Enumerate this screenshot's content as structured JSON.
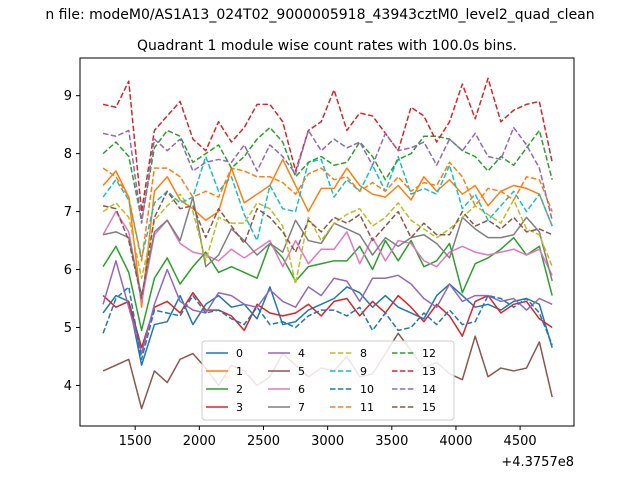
{
  "figure": {
    "suptitle": "n file: modeM0/AS1A13_024T02_9000005918_43943cztM0_level2_quad_clean",
    "background": "#ffffff"
  },
  "chart_data": {
    "type": "line",
    "title": "Quadrant 1 module wise count rates with 100.0s bins.",
    "xlabel": "",
    "ylabel": "",
    "x_offset_label": "+4.3757e8",
    "x_offset": 437570000,
    "xlim": [
      1070,
      4920
    ],
    "ylim": [
      3.3,
      9.65
    ],
    "x_ticks": [
      1500,
      2000,
      2500,
      3000,
      3500,
      4000,
      4500
    ],
    "x_tick_labels": [
      "1500",
      "2000",
      "2500",
      "3000",
      "3500",
      "4000",
      "4500"
    ],
    "y_ticks": [
      4,
      5,
      6,
      7,
      8,
      9
    ],
    "y_tick_labels": [
      "4",
      "5",
      "6",
      "7",
      "8",
      "9"
    ],
    "grid": false,
    "legend": {
      "placement": "lower-center",
      "columns": 4
    },
    "x": [
      1250,
      1350,
      1450,
      1550,
      1650,
      1750,
      1850,
      1950,
      2050,
      2150,
      2250,
      2350,
      2450,
      2550,
      2650,
      2750,
      2850,
      2950,
      3050,
      3150,
      3250,
      3350,
      3450,
      3550,
      3650,
      3750,
      3850,
      3950,
      4050,
      4150,
      4250,
      4350,
      4450,
      4550,
      4650,
      4750
    ],
    "series": [
      {
        "name": "0",
        "color": "#1f77b4",
        "dash": "solid",
        "values": [
          5.25,
          5.55,
          5.45,
          4.35,
          5.05,
          5.1,
          5.55,
          5.05,
          5.4,
          5.55,
          5.35,
          5.4,
          5.15,
          5.7,
          5.05,
          5.1,
          5.3,
          5.4,
          5.5,
          5.7,
          5.6,
          5.35,
          5.55,
          5.35,
          5.25,
          5.15,
          5.55,
          5.75,
          5.55,
          5.35,
          5.4,
          5.3,
          5.45,
          5.5,
          5.4,
          4.65
        ]
      },
      {
        "name": "1",
        "color": "#ff7f0e",
        "dash": "solid",
        "values": [
          7.45,
          7.7,
          7.25,
          5.35,
          7.35,
          7.6,
          7.2,
          7.05,
          6.85,
          7.0,
          7.75,
          7.15,
          7.3,
          7.45,
          7.9,
          7.45,
          7.0,
          7.4,
          7.4,
          7.75,
          7.45,
          7.3,
          7.25,
          7.45,
          7.2,
          7.6,
          7.35,
          7.55,
          7.3,
          7.45,
          7.1,
          7.35,
          7.45,
          7.4,
          7.3,
          6.75
        ]
      },
      {
        "name": "2",
        "color": "#2ca02c",
        "dash": "solid",
        "values": [
          6.05,
          6.4,
          5.95,
          4.95,
          5.85,
          6.2,
          5.75,
          6.05,
          6.3,
          5.95,
          6.05,
          5.95,
          5.85,
          6.45,
          6.2,
          5.8,
          6.05,
          6.1,
          6.15,
          6.15,
          6.4,
          6.0,
          6.5,
          6.15,
          6.5,
          6.05,
          6.15,
          6.45,
          5.6,
          6.1,
          6.2,
          6.35,
          6.55,
          6.25,
          6.4,
          5.55
        ]
      },
      {
        "name": "3",
        "color": "#d62728",
        "dash": "solid",
        "values": [
          5.55,
          5.35,
          5.45,
          4.65,
          5.35,
          5.45,
          5.25,
          5.6,
          5.3,
          5.3,
          5.2,
          4.95,
          5.4,
          5.25,
          5.2,
          5.25,
          5.4,
          5.2,
          5.45,
          5.5,
          5.2,
          5.45,
          5.25,
          5.55,
          5.35,
          5.1,
          5.4,
          5.2,
          4.85,
          5.45,
          5.55,
          5.25,
          5.4,
          5.45,
          5.15,
          5.0
        ]
      },
      {
        "name": "4",
        "color": "#9467bd",
        "dash": "solid",
        "values": [
          5.4,
          6.15,
          5.35,
          4.55,
          5.4,
          6.0,
          5.45,
          5.3,
          5.25,
          5.6,
          5.55,
          5.4,
          5.35,
          5.65,
          5.45,
          5.35,
          5.7,
          5.55,
          5.85,
          5.8,
          5.45,
          5.85,
          5.85,
          5.9,
          5.75,
          5.5,
          5.35,
          5.75,
          5.45,
          5.55,
          5.55,
          5.45,
          5.5,
          5.3,
          5.5,
          5.4
        ]
      },
      {
        "name": "5",
        "color": "#8c564b",
        "dash": "solid",
        "values": [
          4.25,
          4.35,
          4.45,
          3.6,
          4.25,
          4.05,
          4.45,
          4.55,
          4.3,
          4.0,
          4.35,
          4.25,
          4.0,
          4.15,
          4.55,
          4.35,
          4.15,
          4.3,
          4.25,
          4.5,
          4.15,
          4.2,
          4.55,
          4.9,
          4.6,
          4.3,
          4.4,
          4.2,
          4.1,
          4.85,
          4.15,
          4.3,
          4.25,
          4.3,
          4.75,
          3.8
        ]
      },
      {
        "name": "6",
        "color": "#e377c2",
        "dash": "solid",
        "values": [
          6.6,
          7.0,
          6.65,
          5.45,
          6.6,
          6.85,
          6.45,
          6.3,
          6.25,
          6.15,
          6.35,
          6.2,
          6.35,
          6.5,
          6.05,
          6.5,
          6.1,
          6.35,
          6.35,
          6.65,
          6.1,
          6.55,
          6.15,
          6.5,
          6.45,
          6.15,
          6.05,
          6.3,
          6.4,
          6.3,
          6.25,
          6.3,
          6.35,
          6.25,
          6.35,
          5.9
        ]
      },
      {
        "name": "7",
        "color": "#7f7f7f",
        "dash": "solid",
        "values": [
          6.6,
          6.65,
          6.55,
          5.55,
          6.65,
          6.85,
          6.5,
          7.25,
          6.05,
          6.25,
          6.7,
          6.5,
          6.25,
          6.45,
          6.3,
          6.85,
          6.5,
          6.45,
          6.8,
          6.7,
          6.6,
          6.25,
          6.55,
          6.4,
          6.55,
          6.6,
          6.45,
          6.2,
          6.9,
          6.7,
          6.55,
          6.55,
          6.6,
          6.9,
          6.65,
          5.8
        ]
      },
      {
        "name": "8",
        "color": "#bcbd22",
        "dash": "dashed",
        "values": [
          7.0,
          7.15,
          6.9,
          5.85,
          6.85,
          7.1,
          7.3,
          7.0,
          6.15,
          6.9,
          6.8,
          6.8,
          7.15,
          7.05,
          6.75,
          5.75,
          6.9,
          6.5,
          6.8,
          6.95,
          7.05,
          6.75,
          6.9,
          7.15,
          6.85,
          6.7,
          6.55,
          6.7,
          6.9,
          7.1,
          6.95,
          6.8,
          7.2,
          6.7,
          6.6,
          6.05
        ]
      },
      {
        "name": "9",
        "color": "#17becf",
        "dash": "dashed",
        "values": [
          7.25,
          7.55,
          7.2,
          6.2,
          7.15,
          7.35,
          7.15,
          7.25,
          7.95,
          7.35,
          7.6,
          6.95,
          6.5,
          7.45,
          7.05,
          7.0,
          7.85,
          7.9,
          7.25,
          7.55,
          7.35,
          7.8,
          7.35,
          7.95,
          7.3,
          7.4,
          7.3,
          7.8,
          7.05,
          7.3,
          6.85,
          7.1,
          7.35,
          7.0,
          7.3,
          6.75
        ]
      },
      {
        "name": "10",
        "color": "#1f77b4",
        "dash": "dashed",
        "values": [
          4.9,
          5.5,
          5.7,
          4.45,
          5.3,
          5.25,
          5.2,
          5.55,
          5.25,
          5.3,
          5.15,
          5.05,
          5.35,
          5.05,
          5.1,
          5.0,
          5.2,
          5.3,
          5.3,
          5.2,
          5.35,
          4.95,
          5.25,
          4.95,
          5.0,
          5.25,
          5.05,
          5.3,
          5.05,
          5.1,
          5.55,
          5.5,
          5.35,
          5.5,
          5.25,
          4.7
        ]
      },
      {
        "name": "11",
        "color": "#ff7f0e",
        "dash": "dashed",
        "values": [
          7.75,
          7.6,
          7.25,
          6.15,
          7.75,
          7.75,
          7.6,
          7.25,
          7.35,
          7.25,
          7.75,
          7.7,
          7.6,
          7.6,
          7.5,
          7.3,
          7.65,
          7.75,
          7.55,
          7.6,
          7.35,
          7.5,
          7.35,
          7.6,
          7.35,
          7.5,
          7.45,
          7.85,
          7.6,
          7.1,
          7.4,
          7.35,
          7.2,
          7.6,
          7.55,
          7.0
        ]
      },
      {
        "name": "12",
        "color": "#2ca02c",
        "dash": "dashed",
        "values": [
          8.0,
          8.2,
          7.95,
          6.85,
          8.1,
          8.4,
          8.3,
          7.85,
          8.0,
          8.15,
          7.75,
          7.95,
          8.25,
          8.45,
          8.2,
          7.6,
          7.85,
          7.95,
          7.8,
          7.85,
          8.2,
          7.95,
          7.55,
          7.9,
          8.0,
          8.3,
          8.3,
          8.25,
          8.05,
          7.95,
          7.7,
          7.95,
          7.8,
          8.1,
          8.4,
          7.55
        ]
      },
      {
        "name": "13",
        "color": "#d62728",
        "dash": "dashed",
        "values": [
          8.85,
          8.8,
          9.25,
          7.0,
          8.4,
          8.65,
          8.9,
          8.25,
          8.05,
          8.55,
          8.2,
          8.45,
          8.85,
          8.85,
          8.55,
          7.7,
          8.4,
          8.55,
          9.1,
          8.4,
          8.7,
          8.65,
          8.35,
          8.05,
          8.8,
          8.65,
          8.2,
          8.55,
          9.2,
          8.6,
          9.3,
          8.55,
          8.75,
          8.85,
          8.9,
          7.85
        ]
      },
      {
        "name": "14",
        "color": "#9467bd",
        "dash": "dashed",
        "values": [
          8.35,
          8.3,
          8.4,
          6.8,
          8.25,
          8.05,
          8.25,
          7.7,
          7.85,
          7.9,
          7.85,
          8.15,
          7.7,
          8.15,
          7.95,
          7.65,
          8.4,
          8.05,
          8.25,
          8.1,
          8.2,
          7.8,
          8.35,
          8.05,
          8.1,
          8.2,
          7.8,
          8.25,
          8.05,
          8.35,
          7.95,
          7.9,
          8.45,
          8.15,
          7.75,
          6.85
        ]
      },
      {
        "name": "15",
        "color": "#8c564b",
        "dash": "dashed",
        "values": [
          7.1,
          7.05,
          6.5,
          5.5,
          6.9,
          7.35,
          7.05,
          7.1,
          6.55,
          7.05,
          6.75,
          6.45,
          7.05,
          6.9,
          6.65,
          6.3,
          6.85,
          6.65,
          6.9,
          6.8,
          6.95,
          6.5,
          6.75,
          7.0,
          6.55,
          6.8,
          6.6,
          6.6,
          7.0,
          6.75,
          6.85,
          6.7,
          6.9,
          6.65,
          6.7,
          6.6
        ]
      }
    ]
  }
}
